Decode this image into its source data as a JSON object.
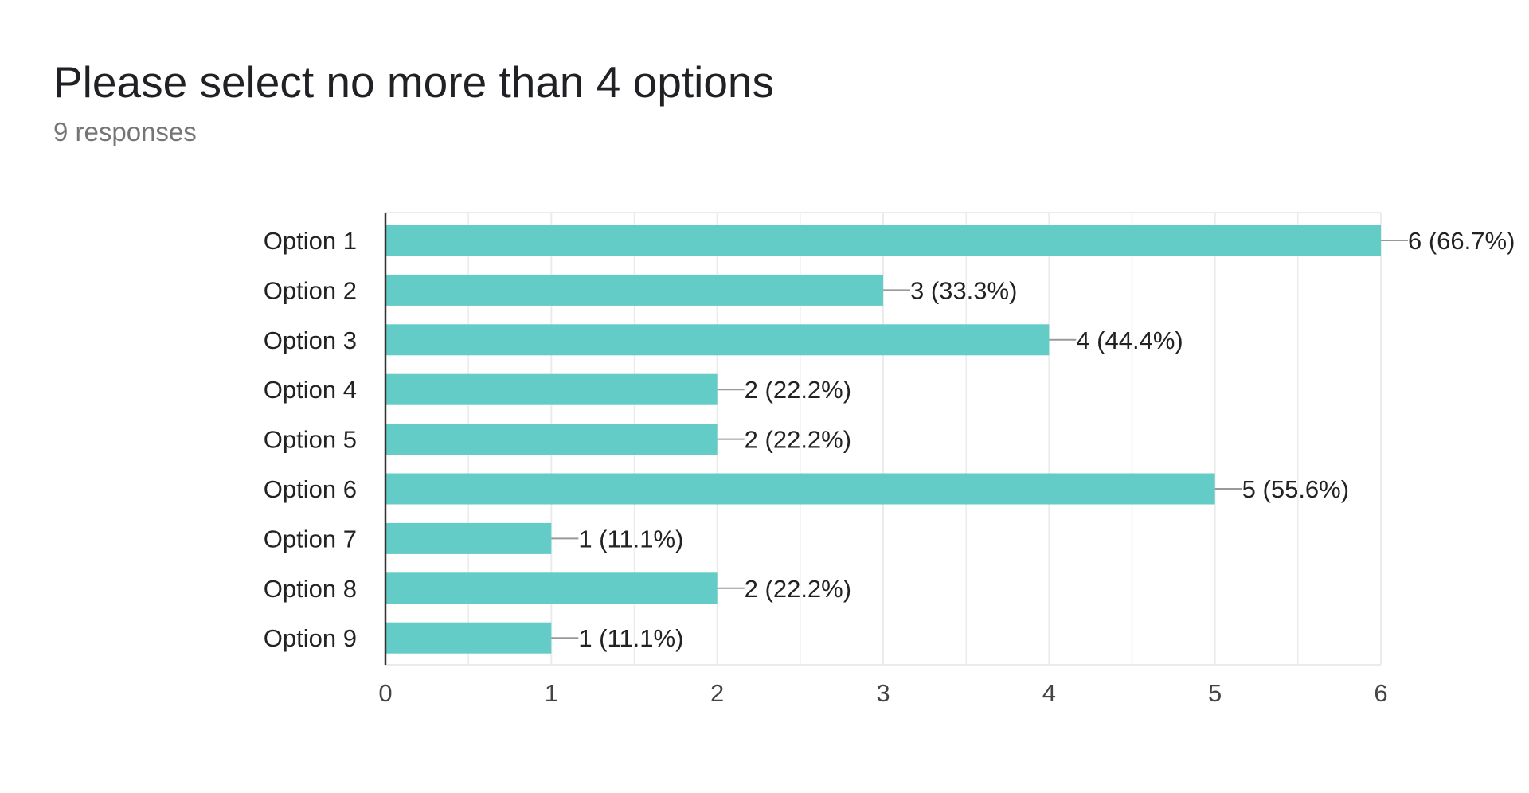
{
  "question": {
    "title": "Please select no more than 4 options",
    "responses": "9 responses"
  },
  "colors": {
    "bar": "#63ccc7",
    "grid": "#ebebeb",
    "axis": "#333333",
    "text": "#222222",
    "tick_text": "#444444",
    "leader": "#999999"
  },
  "chart_data": {
    "type": "bar",
    "orientation": "horizontal",
    "title": "",
    "xlabel": "",
    "ylabel": "",
    "categories": [
      "Option 1",
      "Option 2",
      "Option 3",
      "Option 4",
      "Option 5",
      "Option 6",
      "Option 7",
      "Option 8",
      "Option 9"
    ],
    "values": [
      6,
      3,
      4,
      2,
      2,
      5,
      1,
      2,
      1
    ],
    "data_labels": [
      "6 (66.7%)",
      "3 (33.3%)",
      "4 (44.4%)",
      "2 (22.2%)",
      "2 (22.2%)",
      "5 (55.6%)",
      "1 (11.1%)",
      "2 (22.2%)",
      "1 (11.1%)"
    ],
    "xlim": [
      0,
      6
    ],
    "xticks": [
      0,
      1,
      2,
      3,
      4,
      5,
      6
    ],
    "grid": true,
    "legend": "none"
  }
}
